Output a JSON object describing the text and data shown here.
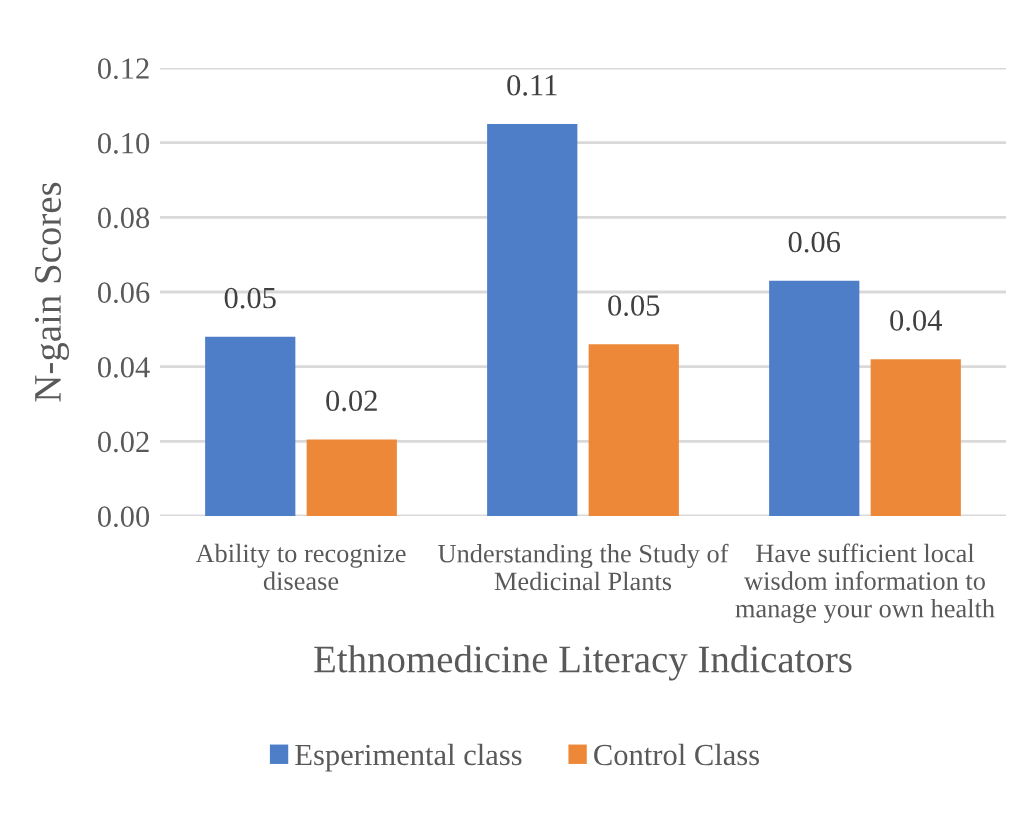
{
  "chart_data": {
    "type": "bar",
    "xlabel": "Ethnomedicine Literacy Indicators",
    "ylabel": "N-gain Scores",
    "categories": [
      "Ability to recognize\ndisease",
      "Understanding the Study of\nMedicinal Plants",
      "Have sufficient local\nwisdom information to\nmanage your own health"
    ],
    "series": [
      {
        "name": "Esperimental class",
        "color": "#4e7ec8",
        "values": [
          0.048,
          0.105,
          0.063
        ],
        "value_labels": [
          "0.05",
          "0.11",
          "0.06"
        ]
      },
      {
        "name": "Control Class",
        "color": "#ed8839",
        "values": [
          0.0205,
          0.046,
          0.042
        ],
        "value_labels": [
          "0.02",
          "0.05",
          "0.04"
        ]
      }
    ],
    "ylim": [
      0,
      0.12
    ],
    "yticks": [
      {
        "value": 0,
        "label": "0.00"
      },
      {
        "value": 0.02,
        "label": "0.02"
      },
      {
        "value": 0.04,
        "label": "0.04"
      },
      {
        "value": 0.06,
        "label": "0.06"
      },
      {
        "value": 0.08,
        "label": "0.08"
      },
      {
        "value": 0.1,
        "label": "0.10"
      },
      {
        "value": 0.12,
        "label": "0.12"
      }
    ],
    "grid": "y",
    "legend": "bottom"
  }
}
